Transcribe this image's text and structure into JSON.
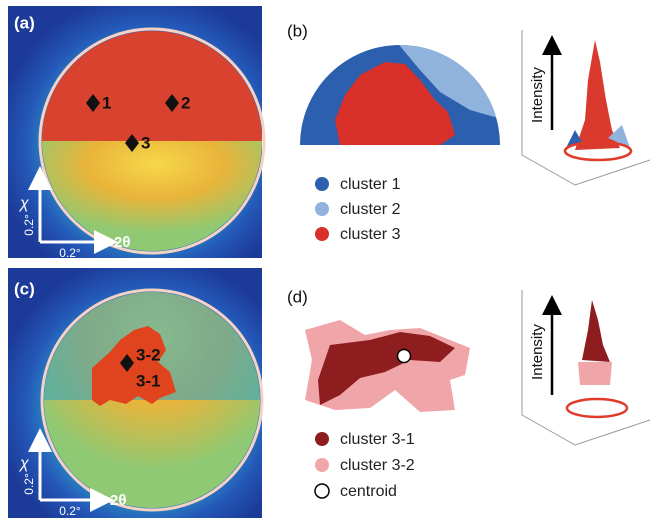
{
  "panels": [
    {
      "label": "(a)",
      "markers": [
        "1",
        "2",
        "3"
      ],
      "axes": {
        "chi": "χ",
        "two_theta": "2θ",
        "scale_chi": "0.2°",
        "scale_two_theta": "0.2°"
      }
    },
    {
      "label": "(b)",
      "legend": [
        "cluster 1",
        "cluster 2",
        "cluster 3"
      ],
      "z_axis": "Intensity"
    },
    {
      "label": "(c)",
      "markers": [
        "3-2",
        "3-1"
      ],
      "axes": {
        "chi": "χ",
        "two_theta": "2θ",
        "scale_chi": "0.2°",
        "scale_two_theta": "0.2°"
      }
    },
    {
      "label": "(d)",
      "legend": [
        "cluster 3-1",
        "cluster 3-2",
        "centroid"
      ],
      "z_axis": "Intensity"
    }
  ]
}
